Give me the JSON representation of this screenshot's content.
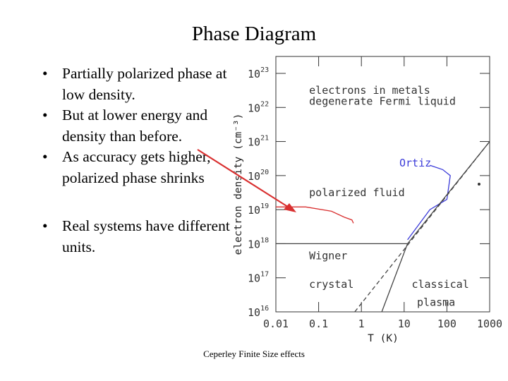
{
  "slide": {
    "title": "Phase Diagram",
    "bullets": [
      "Partially polarized phase at low density.",
      "But at lower energy and density than before.",
      "As accuracy gets higher, polarized phase shrinks",
      "Real systems have different units."
    ],
    "footer": "Ceperley Finite Size effects"
  },
  "chart_data": {
    "type": "line",
    "title": "",
    "xlabel": "T (K)",
    "ylabel": "electron density (cm⁻³)",
    "x_scale": "log",
    "y_scale": "log",
    "xlim": [
      0.01,
      1000
    ],
    "ylim": [
      1e+16,
      1e+23
    ],
    "x_ticks": [
      "0.01",
      "0.1",
      "1",
      "10",
      "100",
      "1000"
    ],
    "y_ticks": [
      {
        "base": "10",
        "exp": "16"
      },
      {
        "base": "10",
        "exp": "17"
      },
      {
        "base": "10",
        "exp": "18"
      },
      {
        "base": "10",
        "exp": "19"
      },
      {
        "base": "10",
        "exp": "20"
      },
      {
        "base": "10",
        "exp": "21"
      },
      {
        "base": "10",
        "exp": "22"
      },
      {
        "base": "10",
        "exp": "23"
      }
    ],
    "region_labels": [
      {
        "text": "electrons in metals",
        "x": 0.06,
        "y": 2.5e+22
      },
      {
        "text": "degenerate Fermi liquid",
        "x": 0.06,
        "y": 1.2e+22
      },
      {
        "text": "polarized fluid",
        "x": 0.06,
        "y": 2.5e+19
      },
      {
        "text": "Wigner",
        "x": 0.06,
        "y": 3.5e+17
      },
      {
        "text": "crystal",
        "x": 0.06,
        "y": 5e+16
      },
      {
        "text": "classical",
        "x": 15,
        "y": 5e+16
      },
      {
        "text": "plasma",
        "x": 20,
        "y": 1.5e+16
      }
    ],
    "series": [
      {
        "name": "Ortiz",
        "color": "#3b3bd9",
        "style": "solid",
        "points": [
          [
            40,
            2e+20
          ],
          [
            80,
            1.5e+20
          ],
          [
            120,
            1e+20
          ],
          [
            100,
            2e+19
          ],
          [
            40,
            1e+19
          ],
          [
            12,
            1.3e+18
          ]
        ]
      },
      {
        "color": "#d93030",
        "style": "solid",
        "points": [
          [
            0.01,
            1.2e+19
          ],
          [
            0.05,
            1.2e+19
          ],
          [
            0.2,
            9e+18
          ],
          [
            0.4,
            6e+18
          ],
          [
            0.6,
            5e+18
          ],
          [
            0.65,
            4e+18
          ]
        ]
      },
      {
        "color": "#444444",
        "style": "solid",
        "points": [
          [
            0.01,
            1e+18
          ],
          [
            12,
            1e+18
          ]
        ]
      },
      {
        "color": "#444444",
        "style": "solid",
        "points": [
          [
            3,
            1e+16
          ],
          [
            12,
            1e+18
          ],
          [
            1000,
            1e+21
          ]
        ]
      },
      {
        "color": "#444444",
        "style": "dashed",
        "points": [
          [
            0.7,
            1e+16
          ],
          [
            1000,
            1e+21
          ]
        ]
      }
    ],
    "annotations": [
      {
        "type": "arrow",
        "color": "#d93030"
      }
    ],
    "grid": false
  }
}
